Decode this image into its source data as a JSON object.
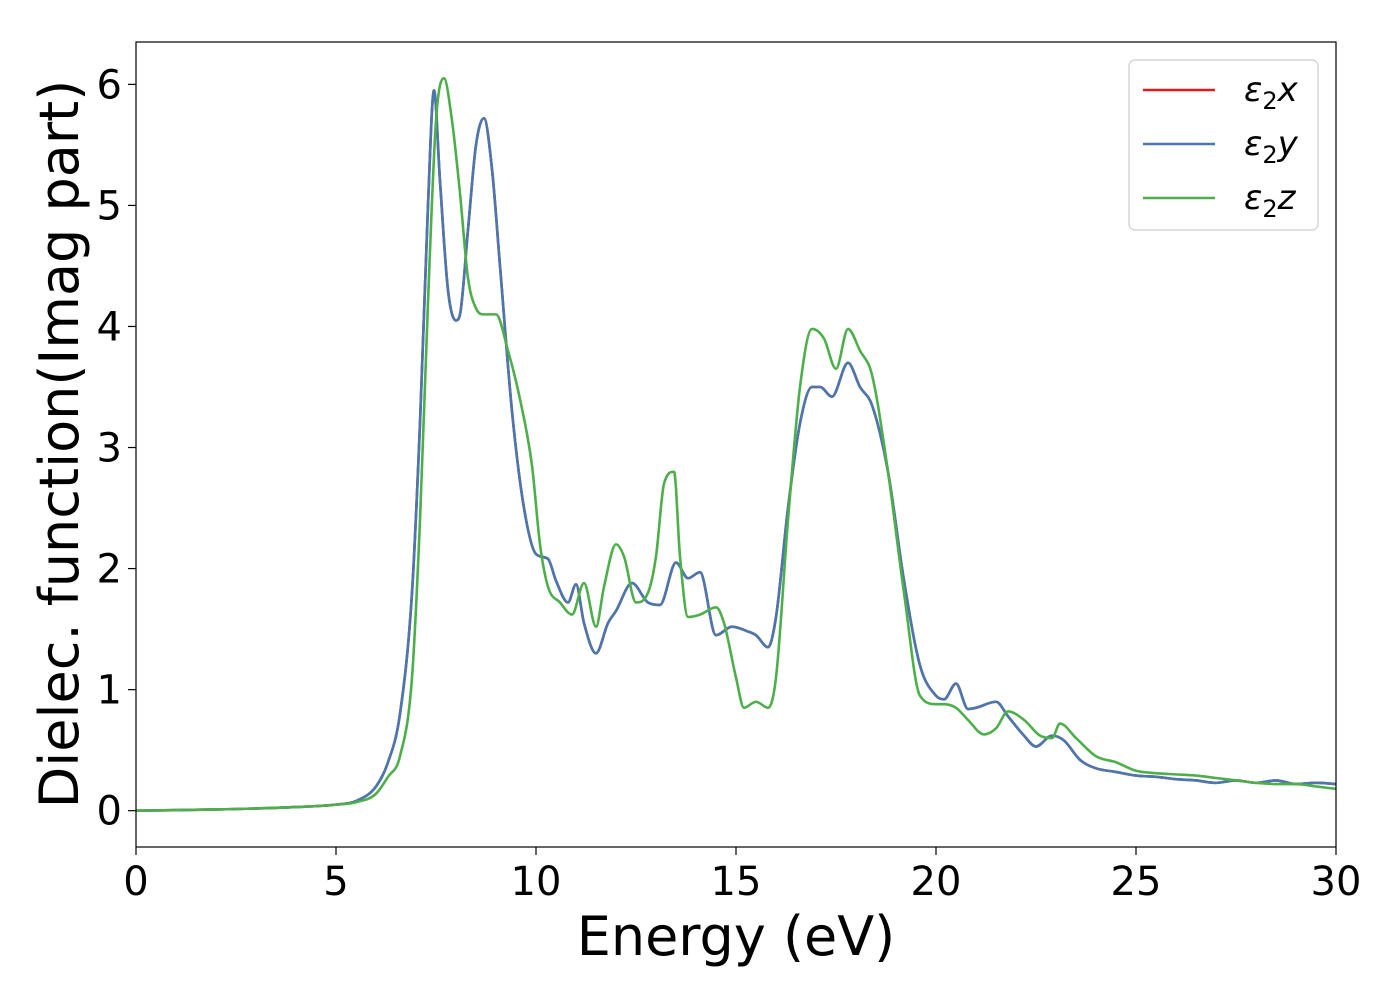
{
  "chart_data": {
    "type": "line",
    "xlabel": "Energy (eV)",
    "ylabel": "Dielec. function(Imag part)",
    "xlim": [
      0,
      30
    ],
    "ylim": [
      -0.3,
      6.35
    ],
    "xticks": [
      0,
      5,
      10,
      15,
      20,
      25,
      30
    ],
    "yticks": [
      0,
      1,
      2,
      3,
      4,
      5,
      6
    ],
    "grid": false,
    "legend_position": "top-right",
    "series": [
      {
        "name": "ε₂x",
        "legend_base": "ε",
        "legend_sub": "2",
        "legend_var": "x",
        "color": "#e41a1c",
        "x": [
          0,
          2,
          4,
          5,
          5.5,
          6,
          6.3,
          6.6,
          6.9,
          7.1,
          7.3,
          7.45,
          7.6,
          7.8,
          8.0,
          8.1,
          8.3,
          8.5,
          8.7,
          8.9,
          9.1,
          9.4,
          9.7,
          10.0,
          10.3,
          10.5,
          10.8,
          11.0,
          11.2,
          11.5,
          11.8,
          12.0,
          12.4,
          12.8,
          13.1,
          13.5,
          13.8,
          14.1,
          14.5,
          14.9,
          15.3,
          15.5,
          15.8,
          16.0,
          16.3,
          16.6,
          16.9,
          17.1,
          17.4,
          17.8,
          18.1,
          18.4,
          18.8,
          19.2,
          19.6,
          20.0,
          20.2,
          20.5,
          20.8,
          21.0,
          21.5,
          21.8,
          22.2,
          22.5,
          22.9,
          23.2,
          23.6,
          24.0,
          24.5,
          25.0,
          25.5,
          26.0,
          26.5,
          27.0,
          27.5,
          28.0,
          28.5,
          29.0,
          29.5,
          30.0
        ],
        "values": [
          0.0,
          0.01,
          0.03,
          0.05,
          0.08,
          0.2,
          0.4,
          0.8,
          1.8,
          3.2,
          5.0,
          5.95,
          5.2,
          4.3,
          4.05,
          4.1,
          4.8,
          5.5,
          5.72,
          5.3,
          4.5,
          3.3,
          2.5,
          2.12,
          2.08,
          1.9,
          1.72,
          1.87,
          1.55,
          1.3,
          1.55,
          1.65,
          1.88,
          1.72,
          1.7,
          2.05,
          1.92,
          1.97,
          1.45,
          1.52,
          1.48,
          1.45,
          1.35,
          1.6,
          2.5,
          3.2,
          3.5,
          3.5,
          3.42,
          3.7,
          3.5,
          3.35,
          2.8,
          1.9,
          1.2,
          0.95,
          0.92,
          1.05,
          0.84,
          0.85,
          0.9,
          0.78,
          0.62,
          0.53,
          0.62,
          0.58,
          0.42,
          0.35,
          0.32,
          0.29,
          0.28,
          0.26,
          0.25,
          0.23,
          0.25,
          0.23,
          0.25,
          0.22,
          0.23,
          0.22
        ]
      },
      {
        "name": "ε₂y",
        "legend_base": "ε",
        "legend_sub": "2",
        "legend_var": "y",
        "color": "#4878b0",
        "x": [
          0,
          2,
          4,
          5,
          5.5,
          6,
          6.3,
          6.6,
          6.9,
          7.1,
          7.3,
          7.45,
          7.6,
          7.8,
          8.0,
          8.1,
          8.3,
          8.5,
          8.7,
          8.9,
          9.1,
          9.4,
          9.7,
          10.0,
          10.3,
          10.5,
          10.8,
          11.0,
          11.2,
          11.5,
          11.8,
          12.0,
          12.4,
          12.8,
          13.1,
          13.5,
          13.8,
          14.1,
          14.5,
          14.9,
          15.3,
          15.5,
          15.8,
          16.0,
          16.3,
          16.6,
          16.9,
          17.1,
          17.4,
          17.8,
          18.1,
          18.4,
          18.8,
          19.2,
          19.6,
          20.0,
          20.2,
          20.5,
          20.8,
          21.0,
          21.5,
          21.8,
          22.2,
          22.5,
          22.9,
          23.2,
          23.6,
          24.0,
          24.5,
          25.0,
          25.5,
          26.0,
          26.5,
          27.0,
          27.5,
          28.0,
          28.5,
          29.0,
          29.5,
          30.0
        ],
        "values": [
          0.0,
          0.01,
          0.03,
          0.05,
          0.08,
          0.2,
          0.4,
          0.8,
          1.8,
          3.2,
          5.0,
          5.95,
          5.2,
          4.3,
          4.05,
          4.1,
          4.8,
          5.5,
          5.72,
          5.3,
          4.5,
          3.3,
          2.5,
          2.12,
          2.08,
          1.9,
          1.72,
          1.87,
          1.55,
          1.3,
          1.55,
          1.65,
          1.88,
          1.72,
          1.7,
          2.05,
          1.92,
          1.97,
          1.45,
          1.52,
          1.48,
          1.45,
          1.35,
          1.6,
          2.5,
          3.2,
          3.5,
          3.5,
          3.42,
          3.7,
          3.5,
          3.35,
          2.8,
          1.9,
          1.2,
          0.95,
          0.92,
          1.05,
          0.84,
          0.85,
          0.9,
          0.78,
          0.62,
          0.53,
          0.62,
          0.58,
          0.42,
          0.35,
          0.32,
          0.29,
          0.28,
          0.26,
          0.25,
          0.23,
          0.25,
          0.23,
          0.25,
          0.22,
          0.23,
          0.22
        ]
      },
      {
        "name": "ε₂z",
        "legend_base": "ε",
        "legend_sub": "2",
        "legend_var": "z",
        "color": "#4daf4a",
        "x": [
          0,
          2,
          4,
          5,
          5.5,
          6,
          6.3,
          6.6,
          6.9,
          7.1,
          7.3,
          7.5,
          7.7,
          7.9,
          8.1,
          8.3,
          8.5,
          8.7,
          9.0,
          9.3,
          9.6,
          9.9,
          10.1,
          10.3,
          10.6,
          10.9,
          11.2,
          11.5,
          11.7,
          12.0,
          12.2,
          12.5,
          12.8,
          13.0,
          13.2,
          13.45,
          13.6,
          13.8,
          14.1,
          14.5,
          14.7,
          15.0,
          15.2,
          15.5,
          15.8,
          16.0,
          16.3,
          16.6,
          16.9,
          17.2,
          17.5,
          17.8,
          18.1,
          18.4,
          18.8,
          19.2,
          19.6,
          20.0,
          20.2,
          20.5,
          20.8,
          21.2,
          21.5,
          21.8,
          22.2,
          22.6,
          22.9,
          23.1,
          23.5,
          24.0,
          24.5,
          25.0,
          25.5,
          26.0,
          26.5,
          27.0,
          27.5,
          28.0,
          28.5,
          29.0,
          29.5,
          30.0
        ],
        "values": [
          0.0,
          0.01,
          0.03,
          0.05,
          0.07,
          0.14,
          0.28,
          0.45,
          1.1,
          2.4,
          4.2,
          5.7,
          6.05,
          5.7,
          5.1,
          4.4,
          4.15,
          4.1,
          4.1,
          3.8,
          3.4,
          2.85,
          2.2,
          1.85,
          1.72,
          1.62,
          1.88,
          1.52,
          1.85,
          2.2,
          2.1,
          1.72,
          1.8,
          2.1,
          2.7,
          2.8,
          2.1,
          1.6,
          1.62,
          1.68,
          1.55,
          1.1,
          0.85,
          0.9,
          0.85,
          1.1,
          2.4,
          3.5,
          3.98,
          3.9,
          3.65,
          3.98,
          3.8,
          3.6,
          2.8,
          1.8,
          0.95,
          0.88,
          0.88,
          0.85,
          0.75,
          0.63,
          0.68,
          0.82,
          0.75,
          0.62,
          0.6,
          0.72,
          0.6,
          0.45,
          0.4,
          0.33,
          0.31,
          0.3,
          0.29,
          0.27,
          0.25,
          0.23,
          0.22,
          0.22,
          0.2,
          0.18
        ]
      }
    ]
  }
}
